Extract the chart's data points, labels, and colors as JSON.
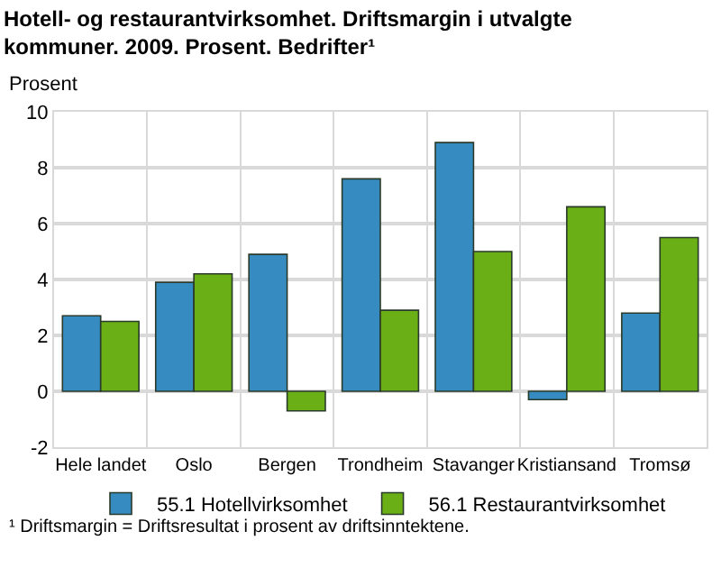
{
  "chart_data": {
    "type": "bar",
    "title": "Hotell- og restaurantvirksomhet. Driftsmargin i utvalgte kommuner. 2009. Prosent. Bedrifter¹",
    "ylabel": "Prosent",
    "categories": [
      "Hele landet",
      "Oslo",
      "Bergen",
      "Trondheim",
      "Stavanger",
      "Kristiansand",
      "Tromsø"
    ],
    "series": [
      {
        "name": "55.1 Hotellvirksomhet",
        "color": "#368bc1",
        "values": [
          2.7,
          3.9,
          4.9,
          7.6,
          8.9,
          -0.3,
          2.8
        ]
      },
      {
        "name": "56.1 Restaurantvirksomhet",
        "color": "#6aaf16",
        "values": [
          2.5,
          4.2,
          -0.7,
          2.9,
          5.0,
          6.6,
          5.5
        ]
      }
    ],
    "ylim": [
      -2,
      10
    ],
    "yticks": [
      -2,
      0,
      2,
      4,
      6,
      8,
      10
    ],
    "grid": true,
    "legend": "bottom",
    "annotations": [
      "¹ Driftsmargin = Driftsresultat i prosent av driftsinntektene."
    ]
  }
}
